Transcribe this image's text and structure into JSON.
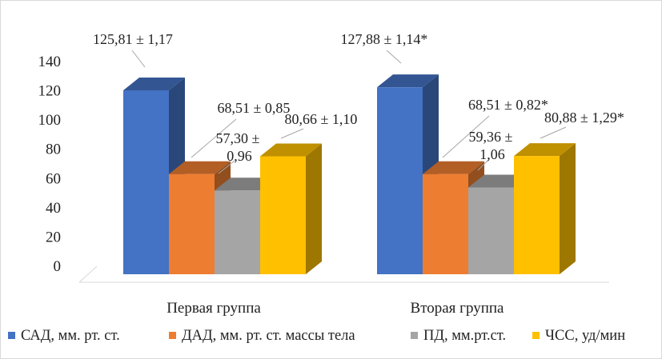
{
  "chart_data": {
    "type": "bar",
    "categories": [
      "Первая группа",
      "Вторая группа"
    ],
    "series": [
      {
        "name": "САД, мм. рт. ст.",
        "values": [
          125.81,
          127.88
        ],
        "labels": [
          "125,81 ± 1,17",
          "127,88 ± 1,14*"
        ],
        "color": "#4472C4"
      },
      {
        "name": "ДАД, мм. рт. ст. массы тела",
        "values": [
          68.51,
          68.51
        ],
        "labels": [
          "68,51 ± 0,85",
          "68,51 ± 0,82*"
        ],
        "color": "#ED7D31"
      },
      {
        "name": "ПД, мм.рт.ст.",
        "values": [
          57.3,
          59.36
        ],
        "labels": [
          "57,30 ± 0,96",
          "59,36 ± 1,06"
        ],
        "color": "#A5A5A5"
      },
      {
        "name": "ЧСС, уд/мин",
        "values": [
          80.66,
          80.88
        ],
        "labels": [
          "80,66 ± 1,10",
          "80,88 ± 1,29*"
        ],
        "color": "#FFC000"
      }
    ],
    "ylim": [
      0,
      140
    ],
    "yticks": [
      "0",
      "20",
      "40",
      "60",
      "80",
      "100",
      "120",
      "140"
    ],
    "grid": false,
    "style": "3d-clustered-column",
    "legend_position": "bottom"
  }
}
